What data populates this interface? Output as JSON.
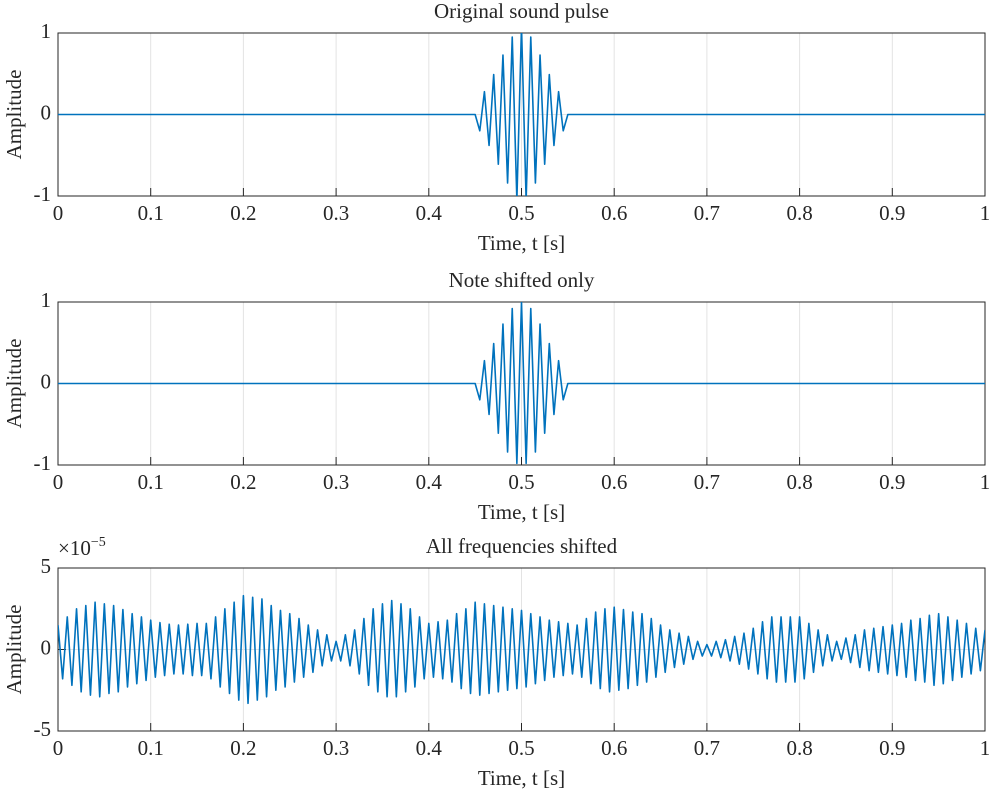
{
  "chart_data": [
    {
      "type": "line",
      "title": "Original sound pulse",
      "xlabel": "Time, t [s]",
      "ylabel": "Amplitude",
      "color": "#0072bd",
      "xlim": [
        0,
        1
      ],
      "ylim": [
        -1,
        1
      ],
      "xticks": [
        0,
        0.1,
        0.2,
        0.3,
        0.4,
        0.5,
        0.6,
        0.7,
        0.8,
        0.9,
        1
      ],
      "yticks": [
        -1,
        0,
        1
      ],
      "grid": true,
      "x": [
        0,
        0.45,
        0.455,
        0.46,
        0.465,
        0.47,
        0.475,
        0.48,
        0.485,
        0.49,
        0.495,
        0.5,
        0.505,
        0.51,
        0.515,
        0.52,
        0.525,
        0.53,
        0.535,
        0.54,
        0.545,
        0.55,
        1
      ],
      "values": [
        0,
        0,
        -0.2,
        0.28,
        -0.38,
        0.49,
        -0.61,
        0.73,
        -0.84,
        0.95,
        -1.05,
        1.08,
        -1.05,
        0.95,
        -0.84,
        0.73,
        -0.61,
        0.49,
        -0.38,
        0.28,
        -0.2,
        0,
        0
      ]
    },
    {
      "type": "line",
      "title": "Note shifted only",
      "xlabel": "Time, t [s]",
      "ylabel": "Amplitude",
      "color": "#0072bd",
      "xlim": [
        0,
        1
      ],
      "ylim": [
        -1,
        1
      ],
      "xticks": [
        0,
        0.1,
        0.2,
        0.3,
        0.4,
        0.5,
        0.6,
        0.7,
        0.8,
        0.9,
        1
      ],
      "yticks": [
        -1,
        0,
        1
      ],
      "grid": true,
      "x": [
        0,
        0.45,
        0.455,
        0.46,
        0.465,
        0.47,
        0.475,
        0.48,
        0.485,
        0.49,
        0.495,
        0.5,
        0.505,
        0.51,
        0.515,
        0.52,
        0.525,
        0.53,
        0.535,
        0.54,
        0.545,
        0.55,
        1
      ],
      "values": [
        0,
        0,
        -0.2,
        0.28,
        -0.38,
        0.49,
        -0.61,
        0.73,
        -0.84,
        0.92,
        -0.98,
        1,
        -0.98,
        0.92,
        -0.84,
        0.73,
        -0.61,
        0.49,
        -0.38,
        0.28,
        -0.2,
        0,
        0
      ]
    },
    {
      "type": "line",
      "title": "All frequencies shifted",
      "xlabel": "Time, t [s]",
      "ylabel": "Amplitude",
      "color": "#0072bd",
      "y_multiplier": "×10",
      "y_exponent": "−5",
      "xlim": [
        0,
        1
      ],
      "ylim": [
        -5,
        5
      ],
      "xticks": [
        0,
        0.1,
        0.2,
        0.3,
        0.4,
        0.5,
        0.6,
        0.7,
        0.8,
        0.9,
        1
      ],
      "yticks": [
        -5,
        0,
        5
      ],
      "grid": true,
      "x": [
        0,
        0.005,
        0.01,
        0.015,
        0.02,
        0.025,
        0.03,
        0.035,
        0.04,
        0.045,
        0.05,
        0.055,
        0.06,
        0.065,
        0.07,
        0.075,
        0.08,
        0.085,
        0.09,
        0.095,
        0.1,
        0.105,
        0.11,
        0.115,
        0.12,
        0.125,
        0.13,
        0.135,
        0.14,
        0.145,
        0.15,
        0.155,
        0.16,
        0.165,
        0.17,
        0.175,
        0.18,
        0.185,
        0.19,
        0.195,
        0.2,
        0.205,
        0.21,
        0.215,
        0.22,
        0.225,
        0.23,
        0.235,
        0.24,
        0.245,
        0.25,
        0.255,
        0.26,
        0.265,
        0.27,
        0.275,
        0.28,
        0.285,
        0.29,
        0.295,
        0.3,
        0.305,
        0.31,
        0.315,
        0.32,
        0.325,
        0.33,
        0.335,
        0.34,
        0.345,
        0.35,
        0.355,
        0.36,
        0.365,
        0.37,
        0.375,
        0.38,
        0.385,
        0.39,
        0.395,
        0.4,
        0.405,
        0.41,
        0.415,
        0.42,
        0.425,
        0.43,
        0.435,
        0.44,
        0.445,
        0.45,
        0.455,
        0.46,
        0.465,
        0.47,
        0.475,
        0.48,
        0.485,
        0.49,
        0.495,
        0.5,
        0.505,
        0.51,
        0.515,
        0.52,
        0.525,
        0.53,
        0.535,
        0.54,
        0.545,
        0.55,
        0.555,
        0.56,
        0.565,
        0.57,
        0.575,
        0.58,
        0.585,
        0.59,
        0.595,
        0.6,
        0.605,
        0.61,
        0.615,
        0.62,
        0.625,
        0.63,
        0.635,
        0.64,
        0.645,
        0.65,
        0.655,
        0.66,
        0.665,
        0.67,
        0.675,
        0.68,
        0.685,
        0.69,
        0.695,
        0.7,
        0.705,
        0.71,
        0.715,
        0.72,
        0.725,
        0.73,
        0.735,
        0.74,
        0.745,
        0.75,
        0.755,
        0.76,
        0.765,
        0.77,
        0.775,
        0.78,
        0.785,
        0.79,
        0.795,
        0.8,
        0.805,
        0.81,
        0.815,
        0.82,
        0.825,
        0.83,
        0.835,
        0.84,
        0.845,
        0.85,
        0.855,
        0.86,
        0.865,
        0.87,
        0.875,
        0.88,
        0.885,
        0.89,
        0.895,
        0.9,
        0.905,
        0.91,
        0.915,
        0.92,
        0.925,
        0.93,
        0.935,
        0.94,
        0.945,
        0.95,
        0.955,
        0.96,
        0.965,
        0.97,
        0.975,
        0.98,
        0.985,
        0.99,
        0.995,
        1
      ],
      "values": [
        1.5,
        -1.8,
        2.0,
        -2.2,
        2.5,
        -2.6,
        2.7,
        -2.8,
        2.9,
        -2.9,
        2.8,
        -2.7,
        2.7,
        -2.6,
        2.45,
        -2.3,
        2.2,
        -2.1,
        2.0,
        -1.9,
        1.8,
        -1.7,
        1.65,
        -1.6,
        1.55,
        -1.5,
        1.5,
        -1.5,
        1.55,
        -1.6,
        1.6,
        -1.6,
        1.6,
        -1.8,
        2.0,
        -2.3,
        2.5,
        -2.7,
        2.9,
        -3.1,
        3.3,
        -3.3,
        3.2,
        -3.1,
        3.1,
        -2.9,
        2.7,
        -2.5,
        2.4,
        -2.3,
        2.2,
        -2.0,
        1.9,
        -1.7,
        1.5,
        -1.4,
        1.2,
        -1.0,
        0.9,
        -0.7,
        0.5,
        -0.7,
        0.9,
        -1.0,
        1.2,
        -1.5,
        1.9,
        -2.2,
        2.5,
        -2.6,
        2.8,
        -2.9,
        3.0,
        -2.9,
        2.8,
        -2.6,
        2.5,
        -2.3,
        2.0,
        -1.8,
        1.6,
        -1.7,
        1.7,
        -1.8,
        1.8,
        -2.0,
        2.2,
        -2.4,
        2.5,
        -2.7,
        2.9,
        -2.8,
        2.8,
        -2.7,
        2.7,
        -2.6,
        2.6,
        -2.5,
        2.5,
        -2.4,
        2.4,
        -2.3,
        2.2,
        -2.1,
        2.0,
        -1.9,
        1.8,
        -1.7,
        1.7,
        -1.6,
        1.6,
        -1.5,
        1.5,
        -1.7,
        1.9,
        -2.1,
        2.3,
        -2.4,
        2.5,
        -2.6,
        2.6,
        -2.5,
        2.45,
        -2.4,
        2.3,
        -2.2,
        2.2,
        -2.0,
        1.9,
        -1.7,
        1.5,
        -1.4,
        1.2,
        -1.1,
        1.0,
        -0.9,
        0.8,
        -0.6,
        0.5,
        -0.4,
        0.3,
        -0.4,
        0.5,
        -0.5,
        0.6,
        -0.7,
        0.8,
        -0.9,
        1.0,
        -1.2,
        1.3,
        -1.5,
        1.7,
        -1.8,
        2.0,
        -2.0,
        2.0,
        -2.0,
        2.0,
        -2.0,
        2.0,
        -1.8,
        1.6,
        -1.4,
        1.2,
        -1.0,
        0.9,
        -0.7,
        0.5,
        -0.6,
        0.7,
        -0.8,
        0.9,
        -1.1,
        1.2,
        -1.3,
        1.3,
        -1.4,
        1.4,
        -1.5,
        1.5,
        -1.6,
        1.6,
        -1.7,
        1.8,
        -1.9,
        1.9,
        -2.0,
        2.1,
        -2.2,
        2.2,
        -2.1,
        2.0,
        -1.9,
        1.8,
        -1.7,
        1.6,
        -1.5,
        1.3,
        -1.3,
        1.2
      ]
    }
  ]
}
